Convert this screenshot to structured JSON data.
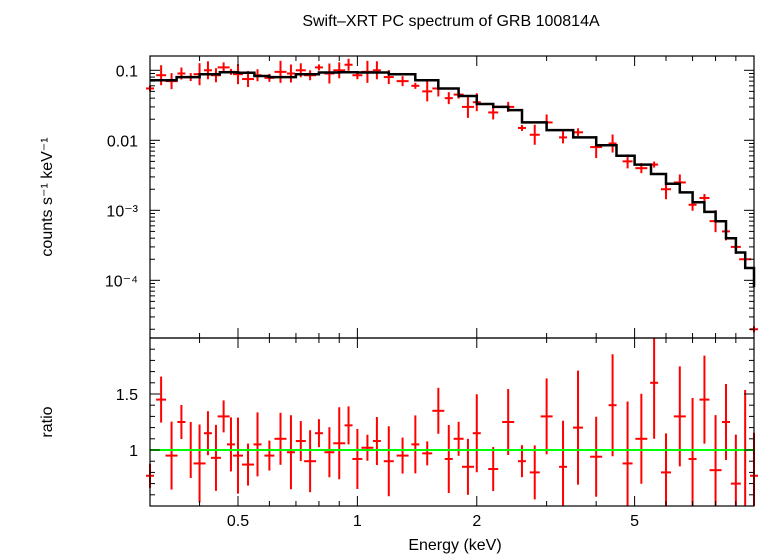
{
  "title": "Swift–XRT PC spectrum of GRB 100814A",
  "colors": {
    "data": "#ff0000",
    "model": "#000000",
    "unity": "#00ff00",
    "frame": "#000000"
  },
  "chart_data": [
    {
      "type": "scatter",
      "panel": "spectrum",
      "ylabel": "counts s⁻¹ keV⁻¹",
      "xscale": "log",
      "yscale": "log",
      "xlim": [
        0.3,
        10
      ],
      "ylim": [
        1.5e-05,
        0.16
      ],
      "yticks": [
        {
          "value": 0.1,
          "label": "0.1"
        },
        {
          "value": 0.01,
          "label": "0.01"
        },
        {
          "value": 0.001,
          "label": "10⁻³"
        },
        {
          "value": 0.0001,
          "label": "10⁻⁴"
        }
      ],
      "series": [
        {
          "kind": "model",
          "x": [
            0.3,
            0.35,
            0.4,
            0.45,
            0.5,
            0.55,
            0.6,
            0.7,
            0.8,
            0.9,
            1.0,
            1.2,
            1.4,
            1.6,
            1.8,
            2.0,
            2.2,
            2.4,
            2.6,
            3.0,
            3.5,
            4.0,
            4.5,
            5.0,
            5.5,
            6.0,
            6.5,
            7.0,
            7.5,
            8.0,
            8.5,
            9.0,
            9.5,
            10.0
          ],
          "y": [
            0.072,
            0.08,
            0.088,
            0.094,
            0.092,
            0.083,
            0.08,
            0.088,
            0.093,
            0.094,
            0.093,
            0.088,
            0.072,
            0.055,
            0.043,
            0.033,
            0.03,
            0.027,
            0.018,
            0.014,
            0.011,
            0.0085,
            0.006,
            0.0045,
            0.0033,
            0.0024,
            0.0018,
            0.0013,
            0.00095,
            0.0007,
            0.0004,
            0.00025,
            0.00015,
            8e-05
          ]
        },
        {
          "kind": "data",
          "x": [
            0.3,
            0.32,
            0.34,
            0.36,
            0.38,
            0.4,
            0.42,
            0.44,
            0.46,
            0.48,
            0.5,
            0.53,
            0.56,
            0.6,
            0.64,
            0.68,
            0.72,
            0.76,
            0.8,
            0.85,
            0.9,
            0.95,
            1.0,
            1.06,
            1.12,
            1.2,
            1.3,
            1.4,
            1.5,
            1.6,
            1.7,
            1.8,
            1.9,
            2.0,
            2.2,
            2.4,
            2.6,
            2.8,
            3.0,
            3.3,
            3.6,
            4.0,
            4.4,
            4.8,
            5.2,
            5.6,
            6.0,
            6.5,
            7.0,
            7.5,
            8.0,
            8.5,
            9.0,
            9.5,
            10.0
          ],
          "y": [
            0.055,
            0.085,
            0.07,
            0.09,
            0.08,
            0.088,
            0.1,
            0.085,
            0.11,
            0.095,
            0.088,
            0.075,
            0.085,
            0.078,
            0.095,
            0.09,
            0.1,
            0.085,
            0.11,
            0.09,
            0.1,
            0.12,
            0.085,
            0.095,
            0.1,
            0.08,
            0.07,
            0.06,
            0.05,
            0.055,
            0.04,
            0.045,
            0.03,
            0.035,
            0.025,
            0.03,
            0.015,
            0.012,
            0.018,
            0.011,
            0.013,
            0.008,
            0.009,
            0.005,
            0.004,
            0.0045,
            0.002,
            0.0025,
            0.0012,
            0.0015,
            0.0007,
            0.0005,
            0.0003,
            0.0002,
            2e-05
          ]
        }
      ]
    },
    {
      "type": "scatter",
      "panel": "ratio",
      "xlabel": "Energy (keV)",
      "ylabel": "ratio",
      "xscale": "log",
      "xlim": [
        0.3,
        10
      ],
      "ylim": [
        0.5,
        2.0
      ],
      "xticks": [
        {
          "value": 0.5,
          "label": "0.5"
        },
        {
          "value": 1,
          "label": "1"
        },
        {
          "value": 2,
          "label": "2"
        },
        {
          "value": 5,
          "label": "5"
        }
      ],
      "yticks": [
        {
          "value": 1,
          "label": "1"
        },
        {
          "value": 1.5,
          "label": "1.5"
        }
      ],
      "reference_line": 1,
      "series": [
        {
          "kind": "data",
          "x": [
            0.3,
            0.32,
            0.34,
            0.36,
            0.38,
            0.4,
            0.42,
            0.44,
            0.46,
            0.48,
            0.5,
            0.53,
            0.56,
            0.6,
            0.64,
            0.68,
            0.72,
            0.76,
            0.8,
            0.85,
            0.9,
            0.95,
            1.0,
            1.06,
            1.12,
            1.2,
            1.3,
            1.4,
            1.5,
            1.6,
            1.7,
            1.8,
            1.9,
            2.0,
            2.2,
            2.4,
            2.6,
            2.8,
            3.0,
            3.3,
            3.6,
            4.0,
            4.4,
            4.8,
            5.2,
            5.6,
            6.0,
            6.5,
            7.0,
            7.5,
            8.0,
            8.5,
            9.0,
            9.5,
            10.0
          ],
          "y": [
            0.77,
            1.45,
            0.95,
            1.25,
            1.0,
            0.88,
            1.15,
            0.93,
            1.3,
            1.05,
            0.95,
            0.87,
            1.05,
            0.95,
            1.1,
            0.98,
            1.08,
            0.9,
            1.15,
            0.98,
            1.06,
            1.22,
            0.92,
            1.02,
            1.08,
            0.9,
            0.95,
            1.05,
            0.97,
            1.35,
            0.92,
            1.1,
            0.85,
            1.15,
            0.83,
            1.25,
            0.9,
            0.8,
            1.3,
            0.85,
            1.2,
            0.94,
            1.4,
            0.88,
            1.1,
            1.6,
            0.8,
            1.3,
            0.92,
            1.45,
            0.82,
            1.25,
            0.7,
            1.0,
            0.77
          ]
        }
      ]
    }
  ]
}
